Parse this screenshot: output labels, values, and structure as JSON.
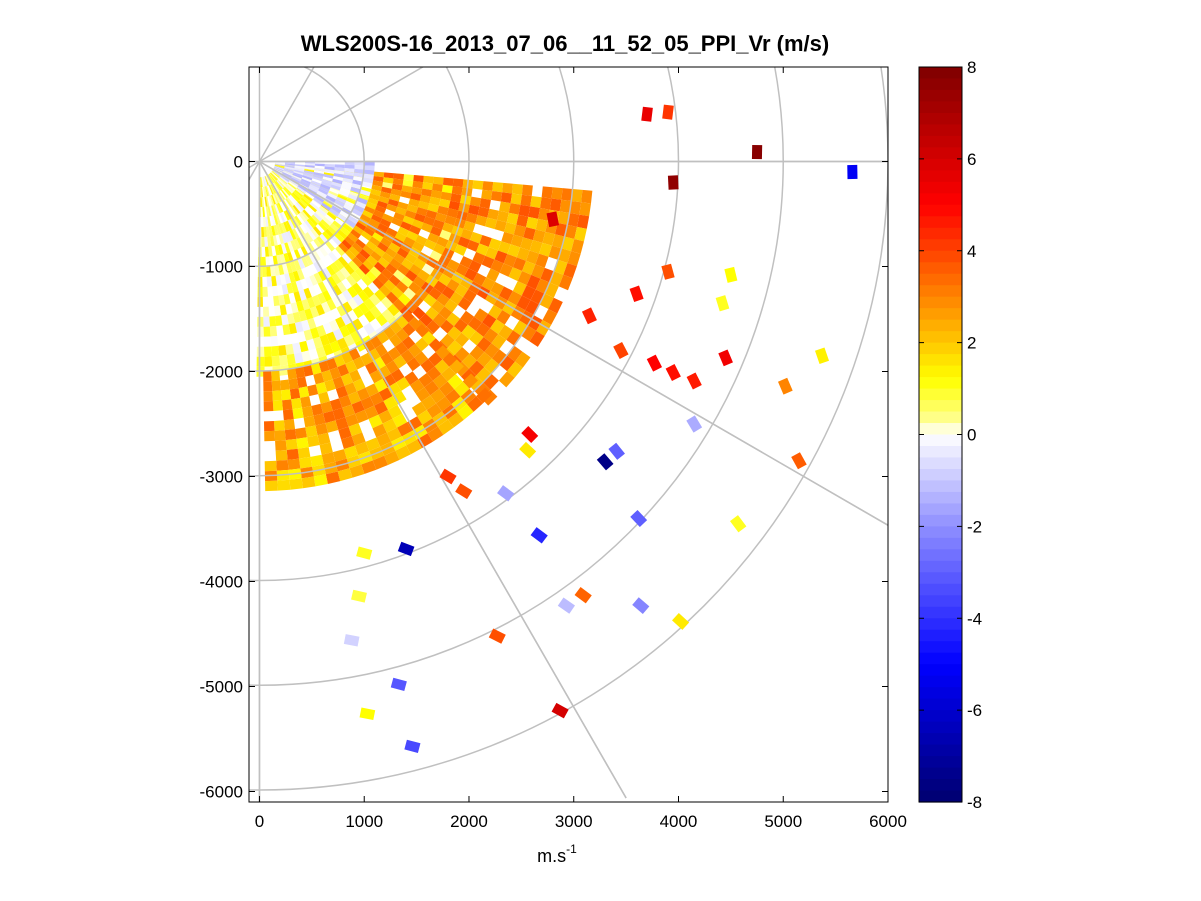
{
  "chart_data": {
    "type": "heatmap",
    "subtype": "ppi-polar-sector",
    "title": "WLS200S-16_2013_07_06__11_52_05_PPI_Vr (m/s)",
    "xlabel_base": "m.s",
    "xlabel_exponent": "-1",
    "xlim": [
      -100,
      6000
    ],
    "ylim": [
      -6100,
      900
    ],
    "xticks": [
      0,
      1000,
      2000,
      3000,
      4000,
      5000,
      6000
    ],
    "yticks": [
      0,
      -1000,
      -2000,
      -3000,
      -4000,
      -5000,
      -6000
    ],
    "xtick_labels": [
      "0",
      "1000",
      "2000",
      "3000",
      "4000",
      "5000",
      "6000"
    ],
    "ytick_labels": [
      "0",
      "-1000",
      "-2000",
      "-3000",
      "-4000",
      "-5000",
      "-6000"
    ],
    "polar_grid": {
      "ring_radii": [
        1000,
        2000,
        3000,
        4000,
        5000,
        6000
      ],
      "spoke_angles_deg": [
        0,
        -30,
        -60,
        30,
        60
      ],
      "color": "#c0c0c0"
    },
    "colorbar": {
      "min": -8,
      "max": 8,
      "tick_values": [
        8,
        6,
        4,
        2,
        0,
        -2,
        -4,
        -6,
        -8
      ],
      "tick_labels": [
        "8",
        "6",
        "4",
        "2",
        "0",
        "-2",
        "-4",
        "-6",
        "-8"
      ],
      "colors": [
        "#00006f",
        "#0000ff",
        "#8f8fff",
        "#ffffff",
        "#ffff7f",
        "#ffff00",
        "#ffa500",
        "#ff0000",
        "#7f0000"
      ],
      "color_stops": [
        -8,
        -5,
        -2,
        0,
        0.4,
        1.2,
        2.5,
        5,
        8
      ]
    },
    "sectors": [
      {
        "r_start": 150,
        "r_end": 2050,
        "az_start": 5,
        "az_end": 90,
        "base": 0.6,
        "spread": 1.0
      },
      {
        "r_start": 150,
        "r_end": 1100,
        "az_start": 0,
        "az_end": 35,
        "base": -0.7,
        "spread": 0.7
      },
      {
        "r_start": 1100,
        "r_end": 3100,
        "az_start": 5,
        "az_end": 45,
        "base": 2.8,
        "spread": 1.0
      },
      {
        "r_start": 2000,
        "r_end": 3100,
        "az_start": 45,
        "az_end": 88,
        "base": 2.4,
        "spread": 1.1
      }
    ],
    "points": [
      {
        "x": 3700,
        "y": 450,
        "value": 5.5
      },
      {
        "x": 3900,
        "y": 470,
        "value": 4.2
      },
      {
        "x": 4750,
        "y": 90,
        "value": 7.8
      },
      {
        "x": 5660,
        "y": -100,
        "value": -5.2
      },
      {
        "x": 3950,
        "y": -200,
        "value": 7.6
      },
      {
        "x": 2800,
        "y": -550,
        "value": 5.8
      },
      {
        "x": 3900,
        "y": -1050,
        "value": 3.8
      },
      {
        "x": 4500,
        "y": -1080,
        "value": 1.2
      },
      {
        "x": 3600,
        "y": -1260,
        "value": 4.8
      },
      {
        "x": 4420,
        "y": -1350,
        "value": 1.0
      },
      {
        "x": 3150,
        "y": -1470,
        "value": 4.5
      },
      {
        "x": 5370,
        "y": -1850,
        "value": 1.4
      },
      {
        "x": 3450,
        "y": -1800,
        "value": 4.0
      },
      {
        "x": 3770,
        "y": -1920,
        "value": 5.0
      },
      {
        "x": 3950,
        "y": -2010,
        "value": 4.8
      },
      {
        "x": 4450,
        "y": -1870,
        "value": 5.3
      },
      {
        "x": 4150,
        "y": -2090,
        "value": 4.6
      },
      {
        "x": 5020,
        "y": -2140,
        "value": 3.0
      },
      {
        "x": 4150,
        "y": -2500,
        "value": -1.5
      },
      {
        "x": 2580,
        "y": -2600,
        "value": 5.2
      },
      {
        "x": 2560,
        "y": -2750,
        "value": 1.5
      },
      {
        "x": 3300,
        "y": -2860,
        "value": -7.5
      },
      {
        "x": 3410,
        "y": -2760,
        "value": -3.0
      },
      {
        "x": 5150,
        "y": -2850,
        "value": 3.6
      },
      {
        "x": 1800,
        "y": -3000,
        "value": 4.2
      },
      {
        "x": 1950,
        "y": -3140,
        "value": 3.8
      },
      {
        "x": 2350,
        "y": -3160,
        "value": -1.6
      },
      {
        "x": 4570,
        "y": -3450,
        "value": 1.0
      },
      {
        "x": 3620,
        "y": -3400,
        "value": -3.0
      },
      {
        "x": 2670,
        "y": -3560,
        "value": -4.2
      },
      {
        "x": 1400,
        "y": -3690,
        "value": -6.5
      },
      {
        "x": 1000,
        "y": -3730,
        "value": 1.0
      },
      {
        "x": 3090,
        "y": -4130,
        "value": 3.5
      },
      {
        "x": 2930,
        "y": -4230,
        "value": -1.2
      },
      {
        "x": 3640,
        "y": -4230,
        "value": -2.2
      },
      {
        "x": 4020,
        "y": -4380,
        "value": 1.5
      },
      {
        "x": 950,
        "y": -4140,
        "value": 0.8
      },
      {
        "x": 880,
        "y": -4560,
        "value": -0.8
      },
      {
        "x": 2270,
        "y": -4520,
        "value": 3.8
      },
      {
        "x": 1330,
        "y": -4980,
        "value": -3.2
      },
      {
        "x": 2870,
        "y": -5230,
        "value": 6.0
      },
      {
        "x": 1030,
        "y": -5260,
        "value": 1.2
      },
      {
        "x": 1460,
        "y": -5570,
        "value": -3.5
      }
    ]
  }
}
